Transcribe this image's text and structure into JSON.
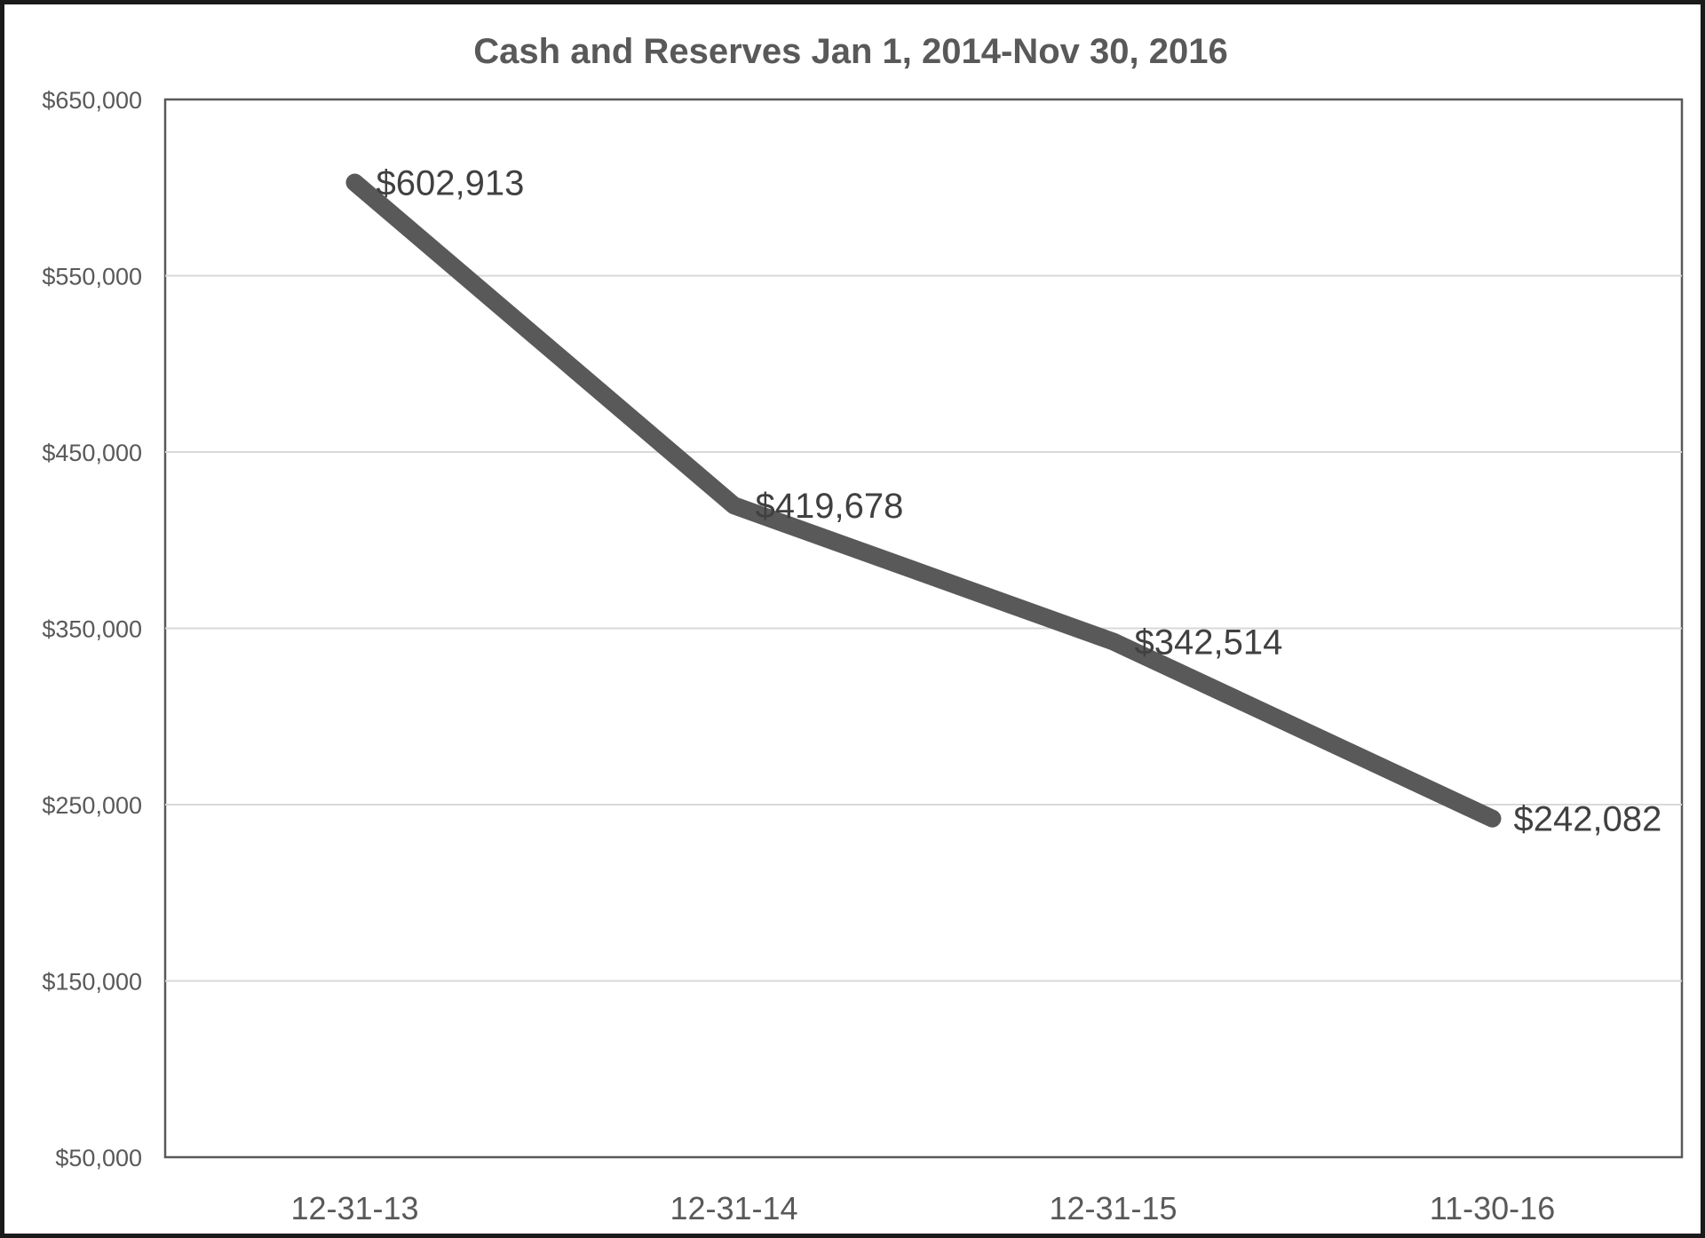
{
  "chart_data": {
    "type": "line",
    "title": "Cash and Reserves Jan 1, 2014-Nov 30, 2016",
    "xlabel": "",
    "ylabel": "",
    "categories": [
      "12-31-13",
      "12-31-14",
      "12-31-15",
      "11-30-16"
    ],
    "series": [
      {
        "values": [
          602913,
          419678,
          342514,
          242082
        ],
        "data_labels": [
          "$602,913",
          "$419,678",
          "$342,514",
          "$242,082"
        ],
        "color": "#595959"
      }
    ],
    "ylim": [
      50000,
      650000
    ],
    "yticks": [
      50000,
      150000,
      250000,
      350000,
      450000,
      550000,
      650000
    ],
    "ytick_labels": [
      "$50,000",
      "$150,000",
      "$250,000",
      "$350,000",
      "$450,000",
      "$550,000",
      "$650,000"
    ],
    "grid": true,
    "legend": "none"
  },
  "colors": {
    "line": "#595959",
    "gridline": "#d9d9d9",
    "axis": "#595959",
    "text": "#595959",
    "frame": "#1a1a1a"
  }
}
